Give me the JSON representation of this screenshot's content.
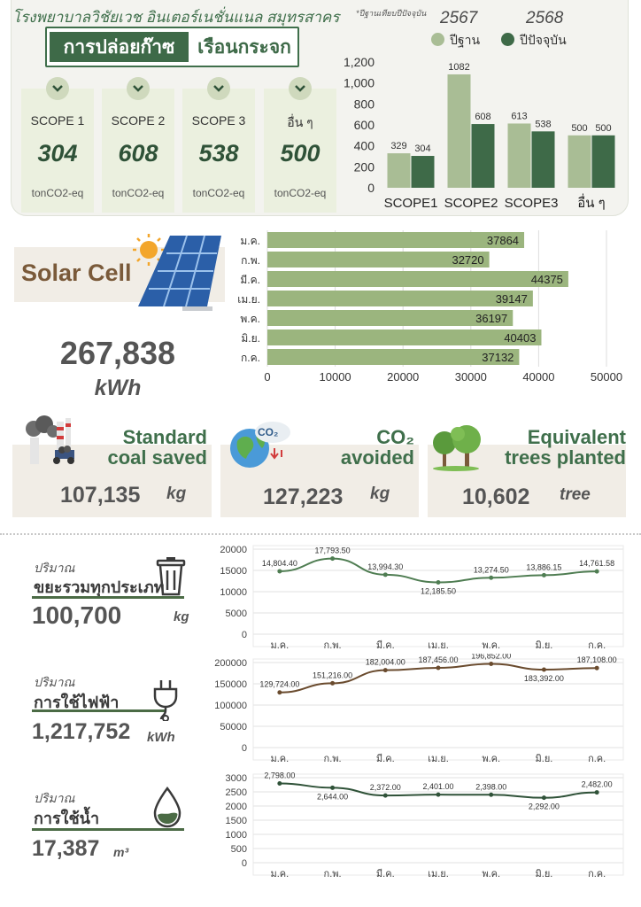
{
  "header": {
    "hospital_name": "โรงพยาบาลวิชัยเวช อินเตอร์เนชั่นแนล สมุทรสาคร",
    "footnote": "*ปีฐานเทียบปีปัจจุบัน",
    "title_left": "การปล่อยก๊าซ",
    "title_right": "เรือนกระจก"
  },
  "legend": {
    "year_base": "2567",
    "year_current": "2568",
    "base_label": "ปีฐาน",
    "current_label": "ปีปัจจุบัน",
    "base_color": "#a9bd95",
    "current_color": "#3e6a48"
  },
  "scopes": [
    {
      "name": "SCOPE 1",
      "value": "304",
      "unit": "tonCO2-eq"
    },
    {
      "name": "SCOPE 2",
      "value": "608",
      "unit": "tonCO2-eq"
    },
    {
      "name": "SCOPE 3",
      "value": "538",
      "unit": "tonCO2-eq"
    },
    {
      "name": "อื่น ๆ",
      "value": "500",
      "unit": "tonCO2-eq"
    }
  ],
  "solar": {
    "label": "Solar Cell",
    "total": "267,838",
    "unit": "kWh"
  },
  "stats": {
    "coal": {
      "title_1": "Standard",
      "title_2": "coal saved",
      "value": "107,135",
      "unit": "kg"
    },
    "co2": {
      "title_1": "CO₂",
      "title_2": "avoided",
      "value": "127,223",
      "unit": "kg",
      "icon_text": "CO₂"
    },
    "trees": {
      "title_1": "Equivalent",
      "title_2": "trees planted",
      "value": "10,602",
      "unit": "tree"
    }
  },
  "metrics": {
    "waste": {
      "small": "ปริมาณ",
      "big": "ขยะรวมทุกประเภท",
      "value": "100,700",
      "unit": "kg"
    },
    "electric": {
      "small": "ปริมาณ",
      "big": "การใช้ไฟฟ้า",
      "value": "1,217,752",
      "unit": "kWh"
    },
    "water": {
      "small": "ปริมาณ",
      "big": "การใช้น้ำ",
      "value": "17,387",
      "unit": "m³"
    }
  },
  "chart_data": [
    {
      "type": "bar",
      "categories": [
        "SCOPE1",
        "SCOPE2",
        "SCOPE3",
        "อื่น ๆ"
      ],
      "series": [
        {
          "name": "ปีฐาน",
          "values": [
            329,
            1082,
            613,
            500
          ],
          "color": "#a9bd95"
        },
        {
          "name": "ปีปัจจุบัน",
          "values": [
            304,
            608,
            538,
            500
          ],
          "color": "#3e6a48"
        }
      ],
      "ylim": [
        0,
        1200
      ],
      "yticks": [
        0,
        200,
        400,
        600,
        800,
        1000,
        1200
      ],
      "data_labels": true,
      "grid": false
    },
    {
      "type": "bar",
      "orientation": "horizontal",
      "categories": [
        "ม.ค.",
        "ก.พ.",
        "มี.ค.",
        "เม.ย.",
        "พ.ค.",
        "มิ.ย.",
        "ก.ค."
      ],
      "values": [
        37864,
        32720,
        44375,
        39147,
        36197,
        40403,
        37132
      ],
      "xlim": [
        0,
        50000
      ],
      "xticks": [
        0,
        10000,
        20000,
        30000,
        40000,
        50000
      ],
      "color": "#9bb57e",
      "data_labels": true,
      "grid": true
    },
    {
      "type": "line",
      "categories": [
        "ม.ค.",
        "ก.พ.",
        "มี.ค.",
        "เม.ย.",
        "พ.ค.",
        "มิ.ย.",
        "ก.ค."
      ],
      "values": [
        14804.4,
        17793.5,
        13994.3,
        12185.5,
        13274.5,
        13886.15,
        14761.58
      ],
      "labels": [
        "14,804.40",
        "17,793.50",
        "13,994.30",
        "12,185.50",
        "13,274.50",
        "13,886.15",
        "14,761.58"
      ],
      "ylim": [
        0,
        20000
      ],
      "yticks": [
        0,
        5000,
        10000,
        15000,
        20000
      ],
      "color": "#4f7d52",
      "grid": true
    },
    {
      "type": "line",
      "categories": [
        "ม.ค.",
        "ก.พ.",
        "มี.ค.",
        "เม.ย.",
        "พ.ค.",
        "มิ.ย.",
        "ก.ค."
      ],
      "values": [
        129724,
        151216,
        182004,
        187456,
        196852,
        183392,
        187108
      ],
      "labels": [
        "129,724.00",
        "151,216.00",
        "182,004.00",
        "187,456.00",
        "196,852.00",
        "183,392.00",
        "187,108.00"
      ],
      "ylim": [
        0,
        200000
      ],
      "yticks": [
        0,
        50000,
        100000,
        150000,
        200000
      ],
      "color": "#6a4b2e",
      "grid": true
    },
    {
      "type": "line",
      "categories": [
        "ม.ค.",
        "ก.พ.",
        "มี.ค.",
        "เม.ย.",
        "พ.ค.",
        "มิ.ย.",
        "ก.ค."
      ],
      "values": [
        2798,
        2644,
        2372,
        2401,
        2398,
        2292,
        2482
      ],
      "labels": [
        "2,798.00",
        "2,644.00",
        "2,372.00",
        "2,401.00",
        "2,398.00",
        "2,292.00",
        "2,482.00"
      ],
      "ylim": [
        0,
        3000
      ],
      "yticks": [
        0,
        500,
        1000,
        1500,
        2000,
        2500,
        3000
      ],
      "color": "#2f5238",
      "grid": true
    }
  ]
}
